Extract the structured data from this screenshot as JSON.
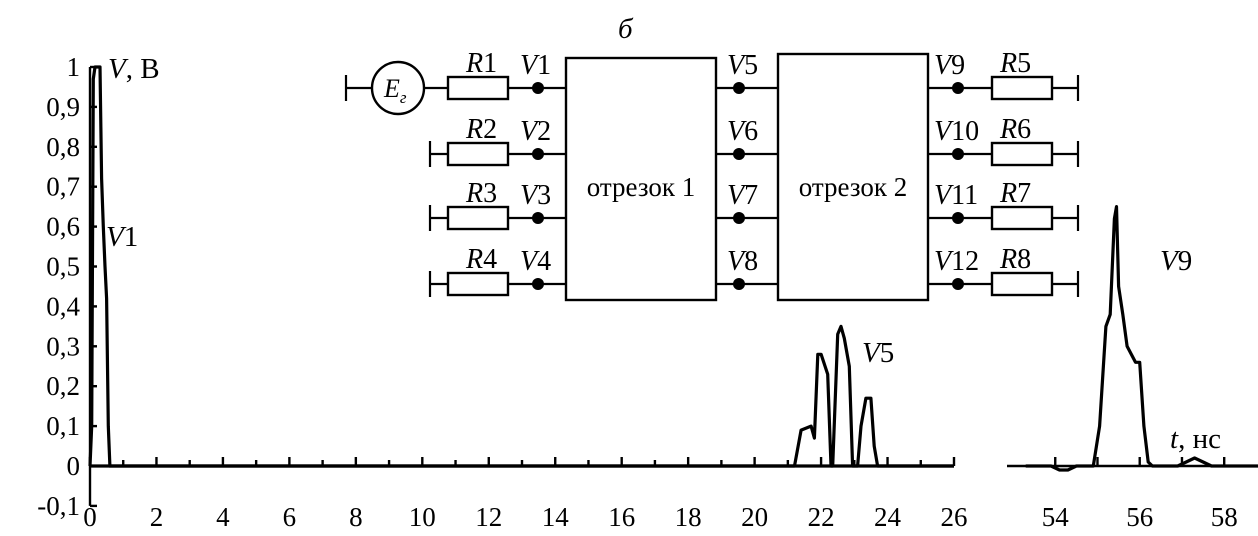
{
  "chart_data": {
    "type": "line",
    "panel_label": "б",
    "ylabel_var": "V",
    "ylabel_unit": ", В",
    "xlabel_var": "t",
    "xlabel_unit": ", нс",
    "xlim_left": [
      0,
      26
    ],
    "xlim_right": [
      53,
      58.8
    ],
    "ylim": [
      -0.1,
      1.0
    ],
    "y_ticks": [
      "1",
      "0,9",
      "0,8",
      "0,7",
      "0,6",
      "0,5",
      "0,4",
      "0,3",
      "0,2",
      "0,1",
      "0",
      "-0,1"
    ],
    "x_ticks_left": [
      "0",
      "2",
      "4",
      "6",
      "8",
      "10",
      "12",
      "14",
      "16",
      "18",
      "20",
      "22",
      "24",
      "26"
    ],
    "x_ticks_right": [
      "54",
      "56",
      "58"
    ],
    "series": [
      {
        "name": "V1",
        "x": [
          0,
          0.05,
          0.1,
          0.15,
          0.2,
          0.25,
          0.3,
          0.35,
          0.4,
          0.45,
          0.5,
          0.55,
          0.6,
          0.65,
          26
        ],
        "y": [
          0,
          0.1,
          0.97,
          1.0,
          1.0,
          1.0,
          1.0,
          0.72,
          0.6,
          0.5,
          0.42,
          0.1,
          0,
          0,
          0
        ]
      },
      {
        "name": "V5",
        "x": [
          0,
          21.2,
          21.4,
          21.7,
          21.8,
          21.9,
          22.0,
          22.2,
          22.3,
          22.35,
          22.5,
          22.6,
          22.7,
          22.85,
          22.95,
          23.1,
          23.2,
          23.35,
          23.5,
          23.6,
          23.7,
          26
        ],
        "y": [
          0,
          0,
          0.09,
          0.1,
          0.07,
          0.28,
          0.28,
          0.23,
          0,
          0,
          0.33,
          0.35,
          0.32,
          0.25,
          0,
          0,
          0.1,
          0.17,
          0.17,
          0.05,
          0,
          0
        ]
      },
      {
        "name": "V9",
        "x": [
          53.3,
          53.9,
          54.1,
          54.3,
          54.5,
          54.9,
          55.05,
          55.2,
          55.3,
          55.4,
          55.45,
          55.5,
          55.6,
          55.7,
          55.8,
          55.9,
          56.0,
          56.1,
          56.2,
          56.3,
          56.6,
          56.9,
          57.1,
          57.3,
          57.5,
          57.7,
          58.8
        ],
        "y": [
          0,
          0,
          -0.01,
          -0.01,
          0,
          0,
          0.1,
          0.35,
          0.38,
          0.62,
          0.65,
          0.45,
          0.38,
          0.3,
          0.28,
          0.26,
          0.26,
          0.1,
          0.01,
          0,
          0,
          0,
          0.01,
          0.02,
          0.01,
          0,
          0
        ]
      }
    ],
    "annotations": [
      "V1",
      "V5",
      "V9"
    ]
  },
  "circuit": {
    "source": "E",
    "source_sub": "г",
    "segment1": "отрезок 1",
    "segment2": "отрезок 2",
    "left_resistors": [
      "R1",
      "R2",
      "R3",
      "R4"
    ],
    "right_resistors": [
      "R5",
      "R6",
      "R7",
      "R8"
    ],
    "nodes_in": [
      "V1",
      "V2",
      "V3",
      "V4"
    ],
    "nodes_mid": [
      "V5",
      "V6",
      "V7",
      "V8"
    ],
    "nodes_out": [
      "V9",
      "V10",
      "V11",
      "V12"
    ]
  }
}
